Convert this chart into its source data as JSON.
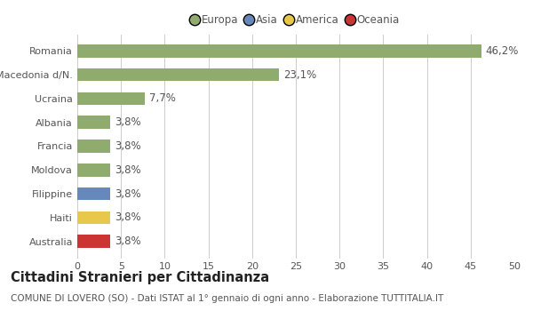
{
  "categories": [
    "Australia",
    "Haiti",
    "Filippine",
    "Moldova",
    "Francia",
    "Albania",
    "Ucraina",
    "Macedonia d/N.",
    "Romania"
  ],
  "values": [
    3.8,
    3.8,
    3.8,
    3.8,
    3.8,
    3.8,
    7.7,
    23.1,
    46.2
  ],
  "labels": [
    "3,8%",
    "3,8%",
    "3,8%",
    "3,8%",
    "3,8%",
    "3,8%",
    "7,7%",
    "23,1%",
    "46,2%"
  ],
  "colors": [
    "#cc3333",
    "#e8c84a",
    "#6688bb",
    "#8fac6e",
    "#8fac6e",
    "#8fac6e",
    "#8fac6e",
    "#8fac6e",
    "#8fac6e"
  ],
  "legend_labels": [
    "Europa",
    "Asia",
    "America",
    "Oceania"
  ],
  "legend_colors": [
    "#8fac6e",
    "#6688bb",
    "#e8c84a",
    "#cc3333"
  ],
  "xlim": [
    0,
    50
  ],
  "xticks": [
    0,
    5,
    10,
    15,
    20,
    25,
    30,
    35,
    40,
    45,
    50
  ],
  "title_bold": "Cittadini Stranieri per Cittadinanza",
  "subtitle": "COMUNE DI LOVERO (SO) - Dati ISTAT al 1° gennaio di ogni anno - Elaborazione TUTTITALIA.IT",
  "bar_height": 0.55,
  "background_color": "#ffffff",
  "grid_color": "#cccccc",
  "text_color": "#555555",
  "label_fontsize": 8.5,
  "tick_fontsize": 8,
  "title_fontsize": 10.5,
  "subtitle_fontsize": 7.5
}
